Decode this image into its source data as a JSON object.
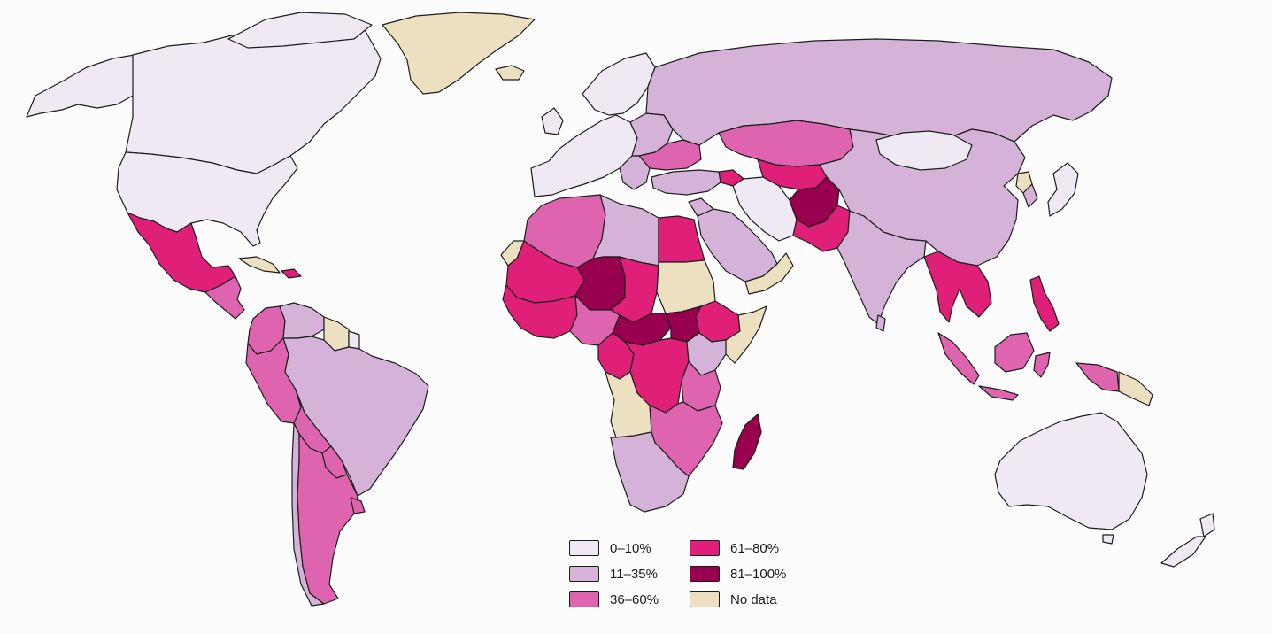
{
  "legend": {
    "items": [
      {
        "key": "b0",
        "label": "0–10%",
        "color": "#efe9f4"
      },
      {
        "key": "b1",
        "label": "11–35%",
        "color": "#d5b3d8"
      },
      {
        "key": "b2",
        "label": "36–60%",
        "color": "#de64b0"
      },
      {
        "key": "b3",
        "label": "61–80%",
        "color": "#df1f78"
      },
      {
        "key": "b4",
        "label": "81–100%",
        "color": "#98004f"
      },
      {
        "key": "nd",
        "label": "No data",
        "color": "#ede0c0"
      }
    ]
  },
  "regions": [
    {
      "name": "Canada",
      "category": "0–10%"
    },
    {
      "name": "United States",
      "category": "0–10%"
    },
    {
      "name": "Alaska",
      "category": "0–10%"
    },
    {
      "name": "Greenland",
      "category": "No data"
    },
    {
      "name": "Iceland",
      "category": "No data"
    },
    {
      "name": "Mexico",
      "category": "61–80%"
    },
    {
      "name": "Central America",
      "category": "36–60%"
    },
    {
      "name": "Cuba",
      "category": "No data"
    },
    {
      "name": "Hispaniola",
      "category": "61–80%"
    },
    {
      "name": "Colombia",
      "category": "36–60%"
    },
    {
      "name": "Venezuela",
      "category": "11–35%"
    },
    {
      "name": "Guyana / Suriname",
      "category": "No data"
    },
    {
      "name": "French Guiana",
      "category": "0–10%"
    },
    {
      "name": "Ecuador / Peru",
      "category": "36–60%"
    },
    {
      "name": "Brazil",
      "category": "11–35%"
    },
    {
      "name": "Bolivia",
      "category": "36–60%"
    },
    {
      "name": "Paraguay",
      "category": "36–60%"
    },
    {
      "name": "Chile",
      "category": "11–35%"
    },
    {
      "name": "Argentina",
      "category": "36–60%"
    },
    {
      "name": "Uruguay",
      "category": "36–60%"
    },
    {
      "name": "Western Europe",
      "category": "0–10%"
    },
    {
      "name": "Eastern Europe",
      "category": "11–35%"
    },
    {
      "name": "Ukraine",
      "category": "36–60%"
    },
    {
      "name": "Russia",
      "category": "11–35%"
    },
    {
      "name": "Kazakhstan",
      "category": "36–60%"
    },
    {
      "name": "Central Asia",
      "category": "61–80%"
    },
    {
      "name": "Afghanistan",
      "category": "81–100%"
    },
    {
      "name": "Pakistan",
      "category": "61–80%"
    },
    {
      "name": "Iran",
      "category": "0–10%"
    },
    {
      "name": "Turkey",
      "category": "11–35%"
    },
    {
      "name": "Arabian Peninsula",
      "category": "11–35%"
    },
    {
      "name": "Yemen / Oman",
      "category": "No data"
    },
    {
      "name": "India",
      "category": "11–35%"
    },
    {
      "name": "China",
      "category": "11–35%"
    },
    {
      "name": "Mongolia",
      "category": "0–10%"
    },
    {
      "name": "North Korea",
      "category": "No data"
    },
    {
      "name": "Japan",
      "category": "0–10%"
    },
    {
      "name": "Myanmar / Indochina",
      "category": "61–80%"
    },
    {
      "name": "Philippines",
      "category": "61–80%"
    },
    {
      "name": "Indonesia",
      "category": "36–60%"
    },
    {
      "name": "Papua New Guinea",
      "category": "No data"
    },
    {
      "name": "Australia",
      "category": "0–10%"
    },
    {
      "name": "New Zealand",
      "category": "0–10%"
    },
    {
      "name": "Morocco / Algeria",
      "category": "36–60%"
    },
    {
      "name": "Libya",
      "category": "11–35%"
    },
    {
      "name": "Egypt",
      "category": "61–80%"
    },
    {
      "name": "Western Sahara",
      "category": "No data"
    },
    {
      "name": "Mauritania / Mali",
      "category": "61–80%"
    },
    {
      "name": "Niger",
      "category": "81–100%"
    },
    {
      "name": "Chad",
      "category": "61–80%"
    },
    {
      "name": "Sudan",
      "category": "No data"
    },
    {
      "name": "Ethiopia",
      "category": "61–80%"
    },
    {
      "name": "Somalia",
      "category": "No data"
    },
    {
      "name": "West Africa",
      "category": "61–80%"
    },
    {
      "name": "Nigeria",
      "category": "36–60%"
    },
    {
      "name": "Central African Republic",
      "category": "81–100%"
    },
    {
      "name": "South Sudan",
      "category": "81–100%"
    },
    {
      "name": "DR Congo",
      "category": "61–80%"
    },
    {
      "name": "Kenya / Uganda",
      "category": "11–35%"
    },
    {
      "name": "Tanzania",
      "category": "36–60%"
    },
    {
      "name": "Angola",
      "category": "No data"
    },
    {
      "name": "Zambia / Mozambique",
      "category": "36–60%"
    },
    {
      "name": "Namibia / South Africa",
      "category": "11–35%"
    },
    {
      "name": "Madagascar",
      "category": "81–100%"
    }
  ]
}
